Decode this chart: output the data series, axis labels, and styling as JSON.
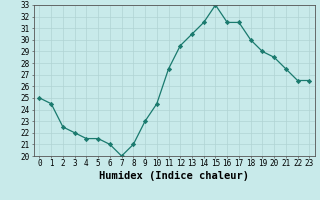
{
  "xlabel": "Humidex (Indice chaleur)",
  "x": [
    0,
    1,
    2,
    3,
    4,
    5,
    6,
    7,
    8,
    9,
    10,
    11,
    12,
    13,
    14,
    15,
    16,
    17,
    18,
    19,
    20,
    21,
    22,
    23
  ],
  "y": [
    25.0,
    24.5,
    22.5,
    22.0,
    21.5,
    21.5,
    21.0,
    20.0,
    21.0,
    23.0,
    24.5,
    27.5,
    29.5,
    30.5,
    31.5,
    33.0,
    31.5,
    31.5,
    30.0,
    29.0,
    28.5,
    27.5,
    26.5,
    26.5
  ],
  "line_color": "#1a7a6e",
  "marker": "D",
  "marker_size": 2.2,
  "bg_color": "#c8eaea",
  "grid_color": "#b0d4d4",
  "ylim": [
    20,
    33
  ],
  "yticks": [
    20,
    21,
    22,
    23,
    24,
    25,
    26,
    27,
    28,
    29,
    30,
    31,
    32,
    33
  ],
  "xticks": [
    0,
    1,
    2,
    3,
    4,
    5,
    6,
    7,
    8,
    9,
    10,
    11,
    12,
    13,
    14,
    15,
    16,
    17,
    18,
    19,
    20,
    21,
    22,
    23
  ],
  "tick_fontsize": 5.5,
  "xlabel_fontsize": 7.5,
  "line_width": 0.9
}
